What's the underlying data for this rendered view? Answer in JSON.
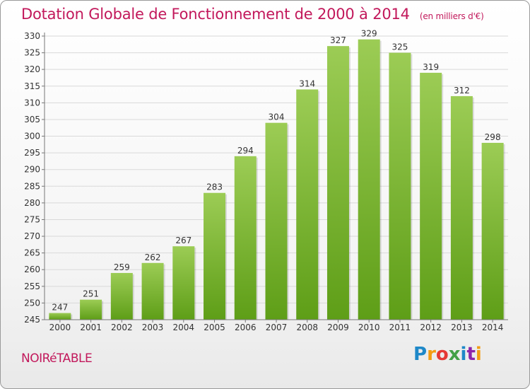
{
  "title": "Dotation Globale de Fonctionnement de 2000 à 2014",
  "subtitle": "(en milliers d'€)",
  "footer": {
    "town": "NOIRéTABLE",
    "brand": "Proxiti"
  },
  "colors": {
    "accent": "#c2185b",
    "bar_top": "#9ccc55",
    "bar_bottom": "#5e9e17",
    "grid": "#d9d9d9"
  },
  "chart_data": {
    "type": "bar",
    "title": "Dotation Globale de Fonctionnement de 2000 à 2014",
    "subtitle": "(en milliers d'€)",
    "xlabel": "",
    "ylabel": "",
    "categories": [
      "2000",
      "2001",
      "2002",
      "2003",
      "2004",
      "2005",
      "2006",
      "2007",
      "2008",
      "2009",
      "2010",
      "2011",
      "2012",
      "2013",
      "2014"
    ],
    "values": [
      247,
      251,
      259,
      262,
      267,
      283,
      294,
      304,
      314,
      327,
      329,
      325,
      319,
      312,
      298
    ],
    "ylim": [
      245,
      330
    ],
    "yticks": [
      245,
      250,
      255,
      260,
      265,
      270,
      275,
      280,
      285,
      290,
      295,
      300,
      305,
      310,
      315,
      320,
      325,
      330
    ],
    "grid": true,
    "legend": "none"
  }
}
